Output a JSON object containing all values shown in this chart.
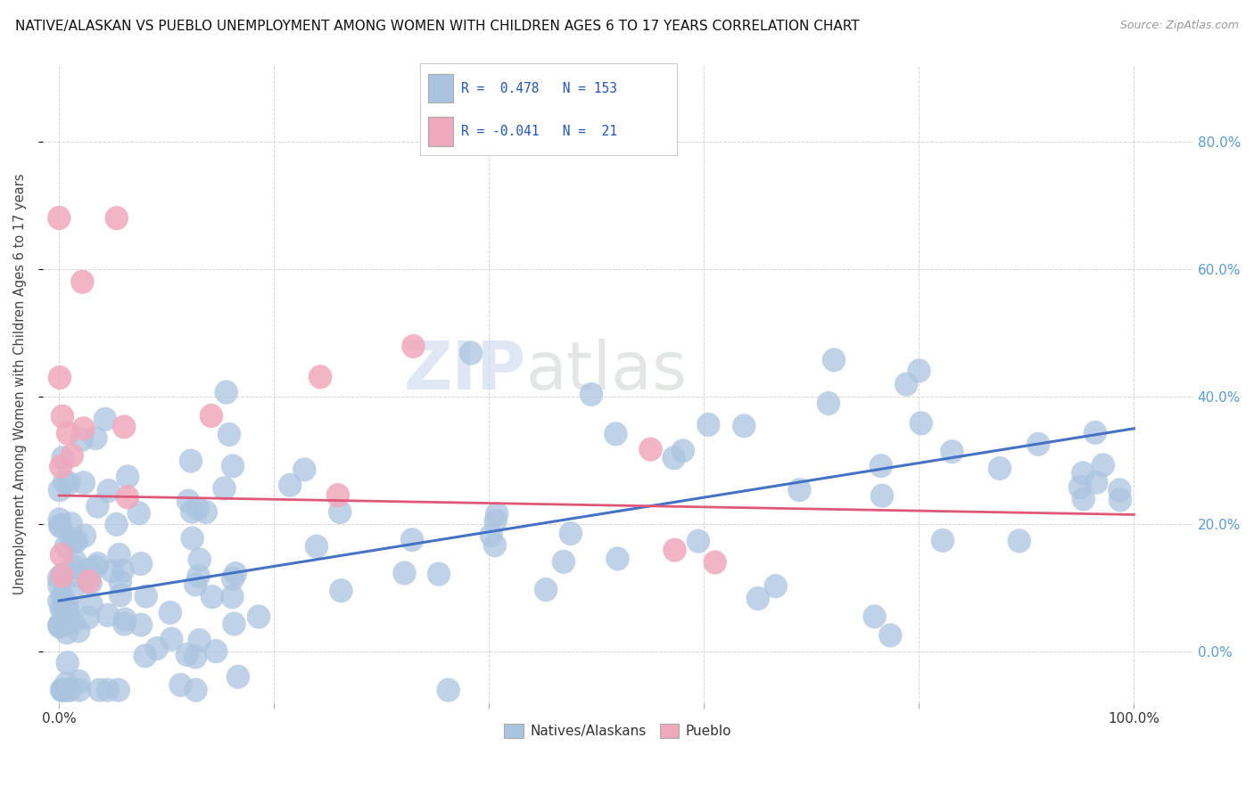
{
  "title": "NATIVE/ALASKAN VS PUEBLO UNEMPLOYMENT AMONG WOMEN WITH CHILDREN AGES 6 TO 17 YEARS CORRELATION CHART",
  "source": "Source: ZipAtlas.com",
  "ylabel": "Unemployment Among Women with Children Ages 6 to 17 years",
  "xlim": [
    -0.015,
    1.055
  ],
  "ylim": [
    -0.08,
    0.92
  ],
  "yticks": [
    0.0,
    0.2,
    0.4,
    0.6,
    0.8
  ],
  "r_native": 0.478,
  "n_native": 153,
  "r_pueblo": -0.041,
  "n_pueblo": 21,
  "color_native": "#aac4e0",
  "color_pueblo": "#f0a8bc",
  "color_native_line": "#4472c4",
  "color_pueblo_line": "#e05878",
  "background_color": "#ffffff",
  "grid_color": "#cccccc",
  "watermark_zip": "ZIP",
  "watermark_atlas": "atlas",
  "legend_labels": [
    "Natives/Alaskans",
    "Pueblo"
  ],
  "native_line_x0": 0.0,
  "native_line_y0": 0.08,
  "native_line_x1": 1.0,
  "native_line_y1": 0.35,
  "pueblo_line_x0": 0.0,
  "pueblo_line_y0": 0.245,
  "pueblo_line_x1": 1.0,
  "pueblo_line_y1": 0.215
}
